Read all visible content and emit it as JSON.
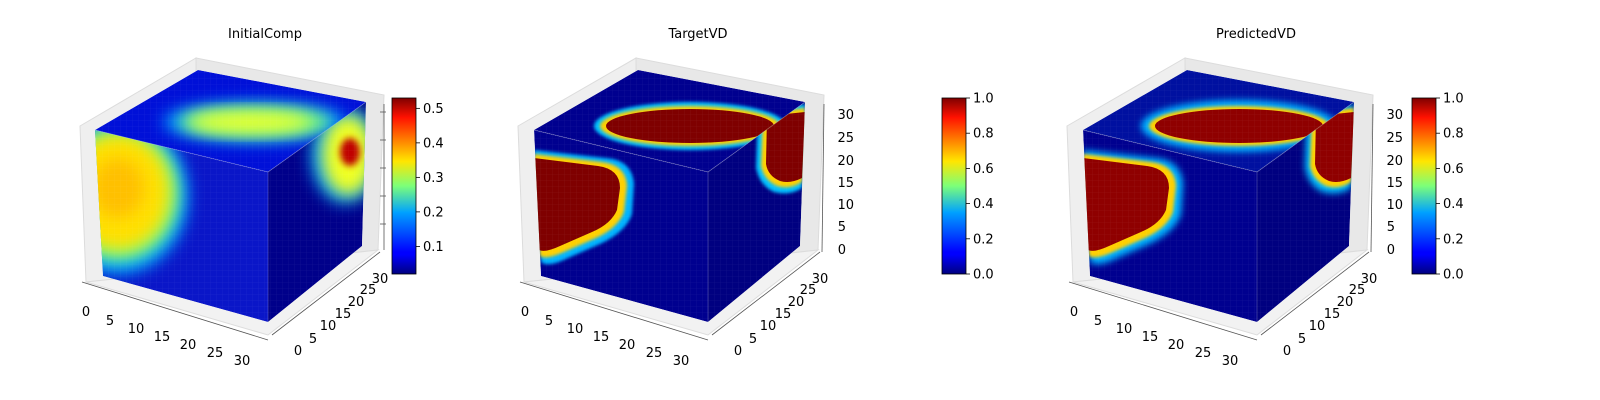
{
  "chart_data": [
    {
      "type": "heatmap",
      "title": "InitialComp",
      "colormap": "jet",
      "axes": {
        "x_ticks": [
          "0",
          "5",
          "10",
          "15",
          "20",
          "25",
          "30"
        ],
        "y_ticks": [
          "0",
          "5",
          "10",
          "15",
          "20",
          "25",
          "30"
        ],
        "z_ticks": []
      },
      "colorbar": {
        "range": [
          0.02,
          0.53
        ],
        "ticks": [
          "0.1",
          "0.2",
          "0.3",
          "0.4",
          "0.5"
        ],
        "tick_values": [
          0.1,
          0.2,
          0.3,
          0.4,
          0.5
        ]
      },
      "value_range": [
        0.02,
        0.53
      ]
    },
    {
      "type": "heatmap",
      "title": "TargetVD",
      "colormap": "jet",
      "axes": {
        "x_ticks": [
          "0",
          "5",
          "10",
          "15",
          "20",
          "25",
          "30"
        ],
        "y_ticks": [
          "0",
          "5",
          "10",
          "15",
          "20",
          "25",
          "30"
        ],
        "z_ticks": [
          "0",
          "5",
          "10",
          "15",
          "20",
          "25",
          "30"
        ]
      },
      "colorbar": {
        "range": [
          0.0,
          1.0
        ],
        "ticks": [
          "0.0",
          "0.2",
          "0.4",
          "0.6",
          "0.8",
          "1.0"
        ],
        "tick_values": [
          0,
          0.2,
          0.4,
          0.6,
          0.8,
          1.0
        ]
      },
      "value_range": [
        0.0,
        1.0
      ]
    },
    {
      "type": "heatmap",
      "title": "PredictedVD",
      "colormap": "jet",
      "axes": {
        "x_ticks": [
          "0",
          "5",
          "10",
          "15",
          "20",
          "25",
          "30"
        ],
        "y_ticks": [
          "0",
          "5",
          "10",
          "15",
          "20",
          "25",
          "30"
        ],
        "z_ticks": [
          "0",
          "5",
          "10",
          "15",
          "20",
          "25",
          "30"
        ]
      },
      "colorbar": {
        "range": [
          0.0,
          1.0
        ],
        "ticks": [
          "0.0",
          "0.2",
          "0.4",
          "0.6",
          "0.8",
          "1.0"
        ],
        "tick_values": [
          0,
          0.2,
          0.4,
          0.6,
          0.8,
          1.0
        ]
      },
      "value_range": [
        0.0,
        1.0
      ]
    }
  ]
}
